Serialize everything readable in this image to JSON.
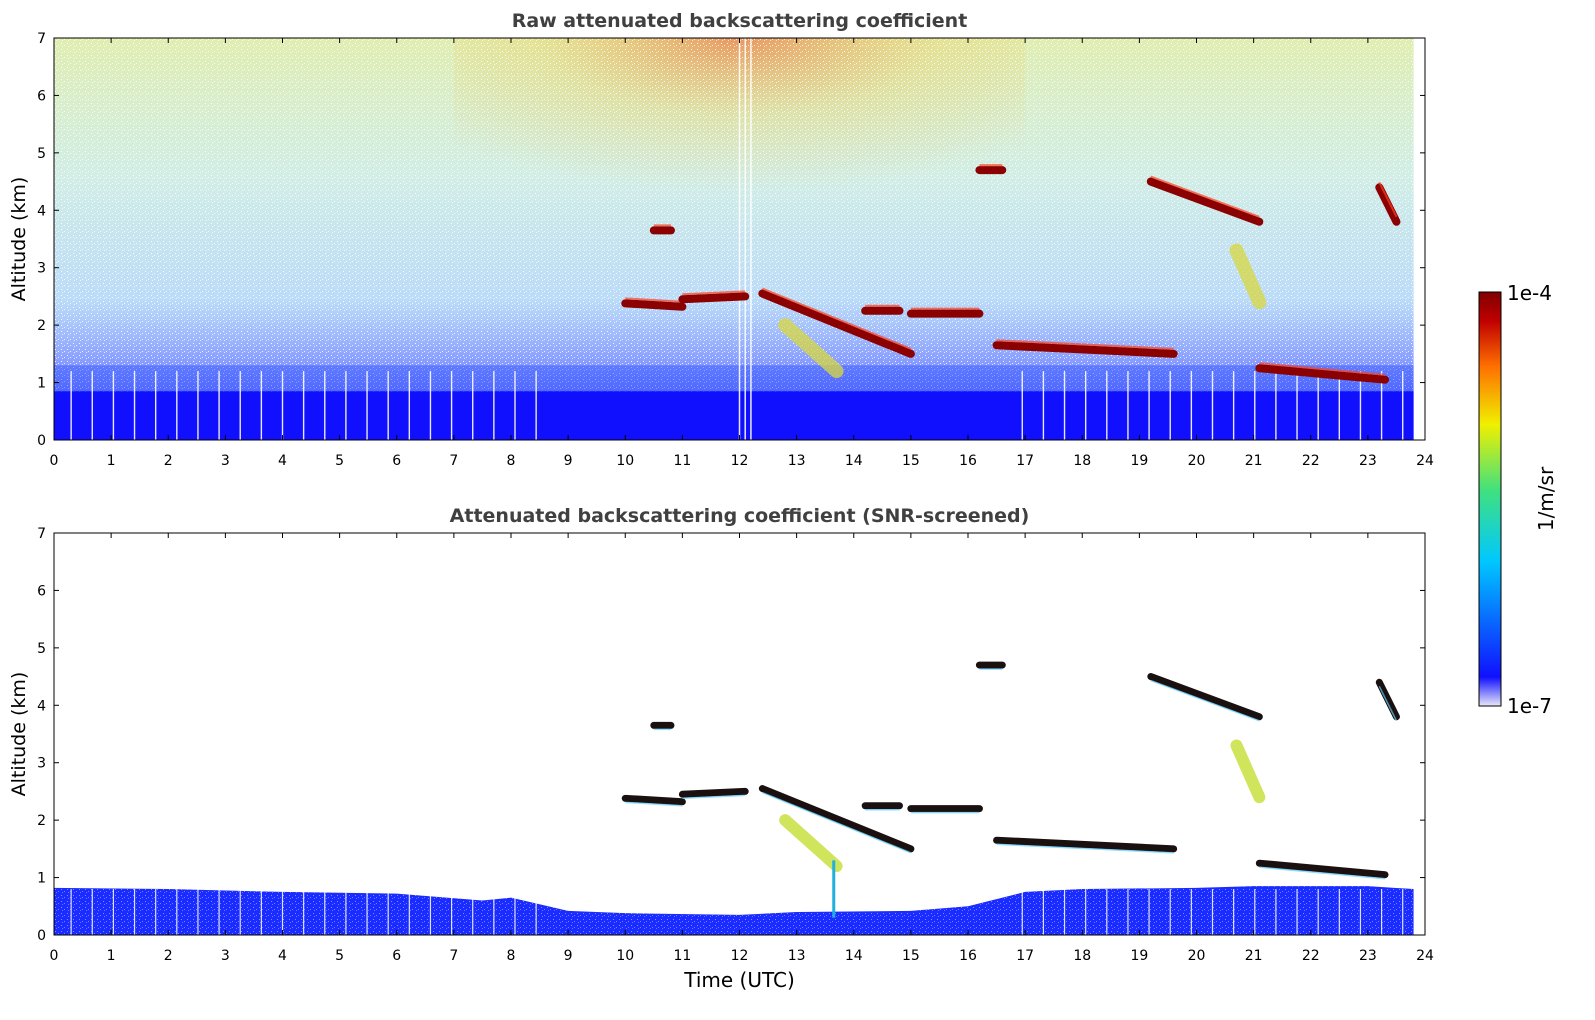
{
  "chart_data": [
    {
      "type": "heatmap",
      "title": "Raw attenuated backscattering coefficient",
      "xlabel": "",
      "ylabel": "Altitude (km)",
      "xlim": [
        0,
        24
      ],
      "ylim": [
        0,
        7
      ],
      "xticks": [
        "0",
        "1",
        "2",
        "3",
        "4",
        "5",
        "6",
        "7",
        "8",
        "9",
        "10",
        "11",
        "12",
        "13",
        "14",
        "15",
        "16",
        "17",
        "18",
        "19",
        "20",
        "21",
        "22",
        "23",
        "24"
      ],
      "yticks": [
        "0",
        "1",
        "2",
        "3",
        "4",
        "5",
        "6",
        "7"
      ],
      "grid": false,
      "layers": [
        {
          "feature": "boundary layer",
          "x": [
            0,
            23.8
          ],
          "y_top": [
            0.9,
            0.9,
            0.8
          ],
          "level": "low"
        },
        {
          "feature": "noise (upper)",
          "level": "noisy, stronger 8–16 UTC"
        }
      ],
      "features": [
        {
          "x": [
            10.0,
            11.0
          ],
          "y": [
            2.38,
            2.32
          ],
          "level": "high"
        },
        {
          "x": [
            11.0,
            12.1
          ],
          "y": [
            2.45,
            2.5
          ],
          "level": "high"
        },
        {
          "x": [
            12.4,
            15.0
          ],
          "y": [
            2.55,
            1.5
          ],
          "level": "high"
        },
        {
          "x": [
            14.2,
            14.8
          ],
          "y": [
            2.25,
            2.25
          ],
          "level": "high"
        },
        {
          "x": [
            15.0,
            16.2
          ],
          "y": [
            2.2,
            2.2
          ],
          "level": "high"
        },
        {
          "x": [
            16.2,
            16.6
          ],
          "y": [
            4.7,
            4.7
          ],
          "level": "high"
        },
        {
          "x": [
            16.5,
            19.6
          ],
          "y": [
            1.65,
            1.5
          ],
          "level": "high"
        },
        {
          "x": [
            19.2,
            21.1
          ],
          "y": [
            4.5,
            3.8
          ],
          "level": "high"
        },
        {
          "x": [
            21.1,
            23.3
          ],
          "y": [
            1.25,
            1.05
          ],
          "level": "high"
        },
        {
          "x": [
            23.2,
            23.5
          ],
          "y": [
            4.4,
            3.8
          ],
          "level": "high"
        },
        {
          "x": [
            10.5,
            10.8
          ],
          "y": [
            3.65,
            3.65
          ],
          "level": "high"
        },
        {
          "x": [
            12.8,
            13.7
          ],
          "y": [
            2.0,
            1.2
          ],
          "level": "medium"
        },
        {
          "x": [
            20.7,
            21.1
          ],
          "y": [
            3.3,
            2.4
          ],
          "level": "medium"
        }
      ]
    },
    {
      "type": "heatmap",
      "title": "Attenuated backscattering coefficient (SNR-screened)",
      "xlabel": "Time (UTC)",
      "ylabel": "Altitude (km)",
      "xlim": [
        0,
        24
      ],
      "ylim": [
        0,
        7
      ],
      "xticks": [
        "0",
        "1",
        "2",
        "3",
        "4",
        "5",
        "6",
        "7",
        "8",
        "9",
        "10",
        "11",
        "12",
        "13",
        "14",
        "15",
        "16",
        "17",
        "18",
        "19",
        "20",
        "21",
        "22",
        "23",
        "24"
      ],
      "yticks": [
        "0",
        "1",
        "2",
        "3",
        "4",
        "5",
        "6",
        "7"
      ],
      "grid": false,
      "boundary_layer_top_km": {
        "x": [
          0,
          2,
          4,
          6,
          7.5,
          8,
          9,
          10,
          12,
          13,
          15,
          16,
          17,
          18,
          20,
          21,
          23,
          23.8
        ],
        "y": [
          0.82,
          0.8,
          0.75,
          0.72,
          0.6,
          0.65,
          0.42,
          0.38,
          0.35,
          0.4,
          0.42,
          0.5,
          0.75,
          0.8,
          0.82,
          0.85,
          0.85,
          0.8
        ]
      }
    }
  ],
  "colorbar": {
    "label": "1/m/sr",
    "max_label": "1e-4",
    "min_label": "1e-7",
    "colors": [
      "#e8e8f8",
      "#1010ff",
      "#00c8ff",
      "#40e080",
      "#f0f000",
      "#ff7000",
      "#c00000",
      "#800000"
    ]
  }
}
